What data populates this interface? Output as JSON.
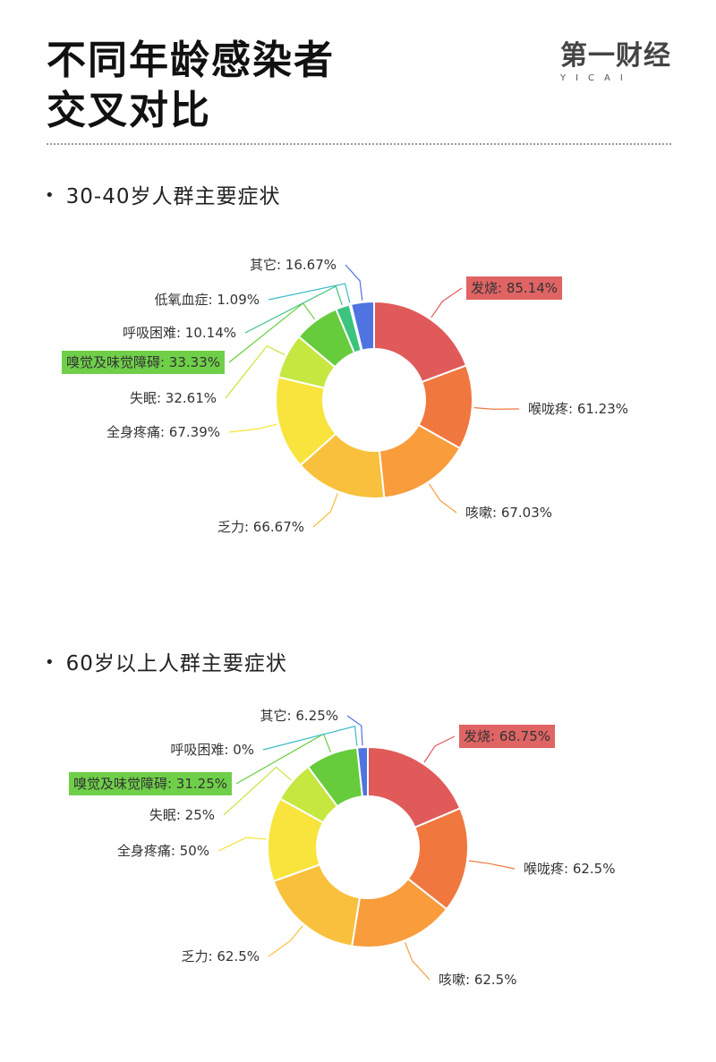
{
  "header": {
    "title_line1": "不同年龄感染者",
    "title_line2": "交叉对比",
    "logo_text": "第一财经",
    "logo_sub": "YICAI"
  },
  "chart_data": [
    {
      "type": "pie",
      "donut": true,
      "title": "30-40岁人群主要症状",
      "slices": [
        {
          "label": "发烧",
          "display": "发烧: 85.14%",
          "value": 85.14,
          "color": "#e05a5a",
          "highlight": "#e06464"
        },
        {
          "label": "喉咙疼",
          "display": "喉咙疼: 61.23%",
          "value": 61.23,
          "color": "#f0773e"
        },
        {
          "label": "咳嗽",
          "display": "咳嗽: 67.03%",
          "value": 67.03,
          "color": "#f89c3c"
        },
        {
          "label": "乏力",
          "display": "乏力: 66.67%",
          "value": 66.67,
          "color": "#f8c03c"
        },
        {
          "label": "全身疼痛",
          "display": "全身疼痛: 67.39%",
          "value": 67.39,
          "color": "#f8e43c"
        },
        {
          "label": "失眠",
          "display": "失眠: 32.61%",
          "value": 32.61,
          "color": "#c6e640"
        },
        {
          "label": "嗅觉及味觉障碍",
          "display": "嗅觉及味觉障碍: 33.33%",
          "value": 33.33,
          "color": "#66cc3c",
          "highlight": "#6fcf49"
        },
        {
          "label": "呼吸困难",
          "display": "呼吸困难: 10.14%",
          "value": 10.14,
          "color": "#3cc47e"
        },
        {
          "label": "低氧血症",
          "display": "低氧血症: 1.09%",
          "value": 1.09,
          "color": "#3cbcc8"
        },
        {
          "label": "其它",
          "display": "其它: 16.67%",
          "value": 16.67,
          "color": "#4f73e0"
        }
      ]
    },
    {
      "type": "pie",
      "donut": true,
      "title": "60岁以上人群主要症状",
      "slices": [
        {
          "label": "发烧",
          "display": "发烧: 68.75%",
          "value": 68.75,
          "color": "#e05a5a",
          "highlight": "#e06464"
        },
        {
          "label": "喉咙疼",
          "display": "喉咙疼: 62.5%",
          "value": 62.5,
          "color": "#f0773e"
        },
        {
          "label": "咳嗽",
          "display": "咳嗽: 62.5%",
          "value": 62.5,
          "color": "#f89c3c"
        },
        {
          "label": "乏力",
          "display": "乏力: 62.5%",
          "value": 62.5,
          "color": "#f8c03c"
        },
        {
          "label": "全身疼痛",
          "display": "全身疼痛: 50%",
          "value": 50,
          "color": "#f8e43c"
        },
        {
          "label": "失眠",
          "display": "失眠: 25%",
          "value": 25,
          "color": "#c6e640"
        },
        {
          "label": "嗅觉及味觉障碍",
          "display": "嗅觉及味觉障碍: 31.25%",
          "value": 31.25,
          "color": "#66cc3c",
          "highlight": "#6fcf49"
        },
        {
          "label": "呼吸困难",
          "display": "呼吸困难: 0%",
          "value": 0,
          "color": "#3cbcc8"
        },
        {
          "label": "其它",
          "display": "其它: 6.25%",
          "value": 6.25,
          "color": "#4f73e0"
        }
      ]
    }
  ]
}
